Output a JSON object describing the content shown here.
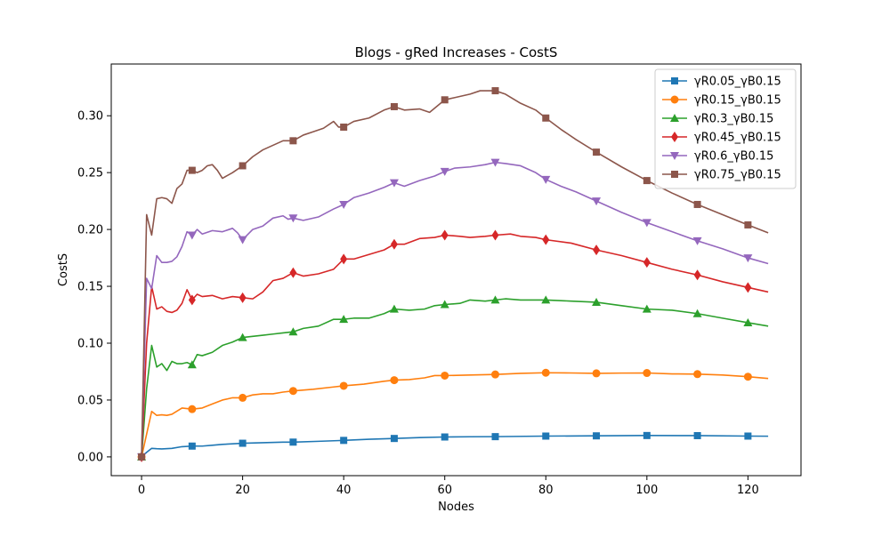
{
  "chart_data": {
    "type": "line",
    "title": "Blogs - gRed Increases - CostS",
    "xlabel": "Nodes",
    "ylabel": "CostS",
    "xlim": [
      -6,
      130.5
    ],
    "ylim": [
      -0.0165,
      0.3455
    ],
    "x_ticks": [
      0,
      20,
      40,
      60,
      80,
      100,
      120
    ],
    "x_tick_labels": [
      "0",
      "20",
      "40",
      "60",
      "80",
      "100",
      "120"
    ],
    "y_ticks": [
      0.0,
      0.05,
      0.1,
      0.15,
      0.2,
      0.25,
      0.3
    ],
    "y_tick_labels": [
      "0.00",
      "0.05",
      "0.10",
      "0.15",
      "0.20",
      "0.25",
      "0.30"
    ],
    "grid": false,
    "legend_position": "top-right",
    "marker_x": [
      0,
      10,
      20,
      30,
      40,
      50,
      60,
      70,
      80,
      90,
      100,
      110,
      120
    ],
    "series": [
      {
        "name": "γR0.05_γB0.15",
        "color": "#1f77b4",
        "marker": "square",
        "points": [
          [
            0,
            0.0
          ],
          [
            1,
            0.004
          ],
          [
            2,
            0.0075
          ],
          [
            3,
            0.0072
          ],
          [
            4,
            0.007
          ],
          [
            6,
            0.0075
          ],
          [
            8,
            0.009
          ],
          [
            10,
            0.0095
          ],
          [
            12,
            0.0095
          ],
          [
            14,
            0.0102
          ],
          [
            16,
            0.011
          ],
          [
            18,
            0.0115
          ],
          [
            20,
            0.012
          ],
          [
            24,
            0.0125
          ],
          [
            28,
            0.013
          ],
          [
            30,
            0.013
          ],
          [
            35,
            0.0137
          ],
          [
            40,
            0.0145
          ],
          [
            45,
            0.0155
          ],
          [
            50,
            0.0162
          ],
          [
            55,
            0.017
          ],
          [
            60,
            0.0175
          ],
          [
            65,
            0.0177
          ],
          [
            70,
            0.0178
          ],
          [
            80,
            0.0183
          ],
          [
            90,
            0.0185
          ],
          [
            100,
            0.0188
          ],
          [
            110,
            0.0187
          ],
          [
            120,
            0.0183
          ],
          [
            124,
            0.0182
          ]
        ]
      },
      {
        "name": "γR0.15_γB0.15",
        "color": "#ff7f0e",
        "marker": "circle",
        "points": [
          [
            0,
            0.0
          ],
          [
            1,
            0.02
          ],
          [
            2,
            0.04
          ],
          [
            3,
            0.0365
          ],
          [
            4,
            0.037
          ],
          [
            5,
            0.0365
          ],
          [
            6,
            0.0375
          ],
          [
            8,
            0.043
          ],
          [
            10,
            0.042
          ],
          [
            12,
            0.043
          ],
          [
            14,
            0.0465
          ],
          [
            16,
            0.05
          ],
          [
            18,
            0.052
          ],
          [
            20,
            0.052
          ],
          [
            22,
            0.0545
          ],
          [
            24,
            0.0555
          ],
          [
            26,
            0.0555
          ],
          [
            28,
            0.057
          ],
          [
            30,
            0.058
          ],
          [
            34,
            0.0595
          ],
          [
            38,
            0.0615
          ],
          [
            40,
            0.0625
          ],
          [
            44,
            0.064
          ],
          [
            48,
            0.0665
          ],
          [
            50,
            0.0675
          ],
          [
            53,
            0.068
          ],
          [
            56,
            0.0695
          ],
          [
            58,
            0.0715
          ],
          [
            60,
            0.0715
          ],
          [
            65,
            0.072
          ],
          [
            70,
            0.0725
          ],
          [
            75,
            0.0735
          ],
          [
            80,
            0.074
          ],
          [
            85,
            0.0738
          ],
          [
            90,
            0.0735
          ],
          [
            95,
            0.0737
          ],
          [
            100,
            0.0738
          ],
          [
            105,
            0.073
          ],
          [
            110,
            0.0728
          ],
          [
            115,
            0.072
          ],
          [
            120,
            0.0705
          ],
          [
            124,
            0.069
          ]
        ]
      },
      {
        "name": "γR0.3_γB0.15",
        "color": "#2ca02c",
        "marker": "triangle-up",
        "points": [
          [
            0,
            0.0
          ],
          [
            1,
            0.06
          ],
          [
            2,
            0.098
          ],
          [
            3,
            0.079
          ],
          [
            4,
            0.082
          ],
          [
            5,
            0.076
          ],
          [
            6,
            0.084
          ],
          [
            7,
            0.082
          ],
          [
            8,
            0.082
          ],
          [
            9,
            0.083
          ],
          [
            10,
            0.081
          ],
          [
            11,
            0.09
          ],
          [
            12,
            0.089
          ],
          [
            14,
            0.092
          ],
          [
            16,
            0.098
          ],
          [
            18,
            0.101
          ],
          [
            20,
            0.105
          ],
          [
            22,
            0.106
          ],
          [
            24,
            0.107
          ],
          [
            26,
            0.108
          ],
          [
            28,
            0.109
          ],
          [
            30,
            0.11
          ],
          [
            32,
            0.113
          ],
          [
            35,
            0.115
          ],
          [
            38,
            0.121
          ],
          [
            40,
            0.121
          ],
          [
            42,
            0.122
          ],
          [
            45,
            0.122
          ],
          [
            48,
            0.126
          ],
          [
            50,
            0.13
          ],
          [
            53,
            0.129
          ],
          [
            56,
            0.13
          ],
          [
            58,
            0.133
          ],
          [
            60,
            0.134
          ],
          [
            63,
            0.135
          ],
          [
            65,
            0.138
          ],
          [
            68,
            0.137
          ],
          [
            70,
            0.138
          ],
          [
            72,
            0.139
          ],
          [
            75,
            0.138
          ],
          [
            78,
            0.138
          ],
          [
            80,
            0.138
          ],
          [
            85,
            0.137
          ],
          [
            90,
            0.136
          ],
          [
            95,
            0.133
          ],
          [
            100,
            0.13
          ],
          [
            105,
            0.129
          ],
          [
            110,
            0.126
          ],
          [
            115,
            0.122
          ],
          [
            120,
            0.118
          ],
          [
            124,
            0.115
          ]
        ]
      },
      {
        "name": "γR0.45_γB0.15",
        "color": "#d62728",
        "marker": "diamond",
        "points": [
          [
            0,
            0.0
          ],
          [
            1,
            0.1
          ],
          [
            2,
            0.15
          ],
          [
            3,
            0.13
          ],
          [
            4,
            0.132
          ],
          [
            5,
            0.128
          ],
          [
            6,
            0.127
          ],
          [
            7,
            0.129
          ],
          [
            8,
            0.135
          ],
          [
            9,
            0.147
          ],
          [
            10,
            0.138
          ],
          [
            11,
            0.143
          ],
          [
            12,
            0.141
          ],
          [
            14,
            0.142
          ],
          [
            16,
            0.139
          ],
          [
            18,
            0.141
          ],
          [
            20,
            0.14
          ],
          [
            22,
            0.139
          ],
          [
            24,
            0.145
          ],
          [
            26,
            0.155
          ],
          [
            28,
            0.157
          ],
          [
            30,
            0.162
          ],
          [
            32,
            0.159
          ],
          [
            35,
            0.161
          ],
          [
            38,
            0.165
          ],
          [
            40,
            0.174
          ],
          [
            42,
            0.174
          ],
          [
            45,
            0.178
          ],
          [
            48,
            0.182
          ],
          [
            50,
            0.187
          ],
          [
            52,
            0.187
          ],
          [
            55,
            0.192
          ],
          [
            58,
            0.193
          ],
          [
            60,
            0.195
          ],
          [
            63,
            0.194
          ],
          [
            65,
            0.193
          ],
          [
            68,
            0.194
          ],
          [
            70,
            0.195
          ],
          [
            73,
            0.196
          ],
          [
            75,
            0.194
          ],
          [
            78,
            0.193
          ],
          [
            80,
            0.191
          ],
          [
            85,
            0.188
          ],
          [
            90,
            0.182
          ],
          [
            95,
            0.177
          ],
          [
            100,
            0.171
          ],
          [
            105,
            0.165
          ],
          [
            110,
            0.16
          ],
          [
            115,
            0.154
          ],
          [
            120,
            0.149
          ],
          [
            124,
            0.145
          ]
        ]
      },
      {
        "name": "γR0.6_γB0.15",
        "color": "#9467bd",
        "marker": "triangle-down",
        "points": [
          [
            0,
            0.0
          ],
          [
            1,
            0.157
          ],
          [
            2,
            0.148
          ],
          [
            3,
            0.177
          ],
          [
            4,
            0.171
          ],
          [
            5,
            0.171
          ],
          [
            6,
            0.172
          ],
          [
            7,
            0.176
          ],
          [
            8,
            0.185
          ],
          [
            9,
            0.198
          ],
          [
            10,
            0.195
          ],
          [
            11,
            0.2
          ],
          [
            12,
            0.196
          ],
          [
            14,
            0.199
          ],
          [
            16,
            0.198
          ],
          [
            18,
            0.201
          ],
          [
            19,
            0.197
          ],
          [
            20,
            0.191
          ],
          [
            22,
            0.2
          ],
          [
            24,
            0.203
          ],
          [
            26,
            0.21
          ],
          [
            28,
            0.212
          ],
          [
            29,
            0.209
          ],
          [
            30,
            0.21
          ],
          [
            32,
            0.208
          ],
          [
            35,
            0.211
          ],
          [
            38,
            0.218
          ],
          [
            40,
            0.222
          ],
          [
            42,
            0.228
          ],
          [
            45,
            0.232
          ],
          [
            48,
            0.237
          ],
          [
            50,
            0.241
          ],
          [
            52,
            0.238
          ],
          [
            55,
            0.243
          ],
          [
            58,
            0.247
          ],
          [
            60,
            0.251
          ],
          [
            62,
            0.254
          ],
          [
            65,
            0.255
          ],
          [
            68,
            0.257
          ],
          [
            70,
            0.259
          ],
          [
            72,
            0.258
          ],
          [
            75,
            0.256
          ],
          [
            78,
            0.25
          ],
          [
            80,
            0.244
          ],
          [
            83,
            0.238
          ],
          [
            86,
            0.233
          ],
          [
            90,
            0.225
          ],
          [
            95,
            0.215
          ],
          [
            100,
            0.206
          ],
          [
            105,
            0.198
          ],
          [
            110,
            0.19
          ],
          [
            115,
            0.183
          ],
          [
            120,
            0.175
          ],
          [
            124,
            0.17
          ]
        ]
      },
      {
        "name": "γR0.75_γB0.15",
        "color": "#8c564b",
        "marker": "square",
        "points": [
          [
            0,
            0.0
          ],
          [
            1,
            0.213
          ],
          [
            2,
            0.195
          ],
          [
            3,
            0.227
          ],
          [
            4,
            0.228
          ],
          [
            5,
            0.227
          ],
          [
            6,
            0.223
          ],
          [
            7,
            0.236
          ],
          [
            8,
            0.24
          ],
          [
            9,
            0.252
          ],
          [
            10,
            0.252
          ],
          [
            11,
            0.25
          ],
          [
            12,
            0.252
          ],
          [
            13,
            0.256
          ],
          [
            14,
            0.257
          ],
          [
            15,
            0.252
          ],
          [
            16,
            0.245
          ],
          [
            18,
            0.25
          ],
          [
            20,
            0.256
          ],
          [
            22,
            0.264
          ],
          [
            24,
            0.27
          ],
          [
            26,
            0.274
          ],
          [
            28,
            0.278
          ],
          [
            30,
            0.278
          ],
          [
            32,
            0.283
          ],
          [
            34,
            0.286
          ],
          [
            36,
            0.289
          ],
          [
            38,
            0.295
          ],
          [
            39,
            0.29
          ],
          [
            40,
            0.29
          ],
          [
            42,
            0.295
          ],
          [
            45,
            0.298
          ],
          [
            48,
            0.305
          ],
          [
            50,
            0.308
          ],
          [
            52,
            0.305
          ],
          [
            55,
            0.306
          ],
          [
            57,
            0.303
          ],
          [
            60,
            0.314
          ],
          [
            62,
            0.316
          ],
          [
            65,
            0.319
          ],
          [
            67,
            0.322
          ],
          [
            70,
            0.322
          ],
          [
            72,
            0.319
          ],
          [
            75,
            0.311
          ],
          [
            78,
            0.305
          ],
          [
            80,
            0.298
          ],
          [
            83,
            0.288
          ],
          [
            86,
            0.279
          ],
          [
            90,
            0.268
          ],
          [
            95,
            0.255
          ],
          [
            100,
            0.243
          ],
          [
            105,
            0.232
          ],
          [
            110,
            0.222
          ],
          [
            115,
            0.213
          ],
          [
            120,
            0.204
          ],
          [
            124,
            0.197
          ]
        ]
      }
    ]
  }
}
